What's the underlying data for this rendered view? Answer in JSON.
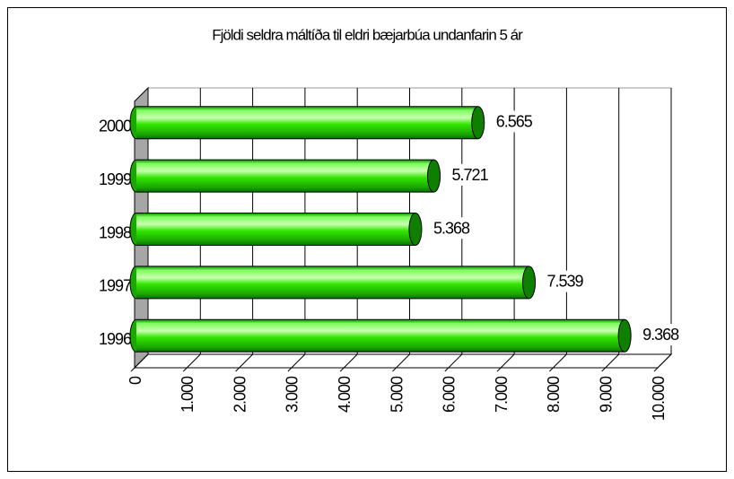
{
  "chart_data": {
    "type": "bar",
    "orientation": "horizontal",
    "title": "Fjöldi seldra máltíða til eldri bæjarbúa undanfarin 5 ár",
    "categories": [
      "1996",
      "1997",
      "1998",
      "1999",
      "2000"
    ],
    "values": [
      9368,
      7539,
      5368,
      5721,
      6565
    ],
    "value_labels": [
      "9.368",
      "7.539",
      "5.368",
      "5.721",
      "6.565"
    ],
    "color": "#33e600",
    "xlim": [
      0,
      10000
    ],
    "xticks": [
      0,
      {
        "value": 1000,
        "label": "1.000"
      },
      {
        "value": 2000,
        "label": "2.000"
      },
      {
        "value": 3000,
        "label": "3.000"
      },
      {
        "value": 4000,
        "label": "4.000"
      },
      {
        "value": 5000,
        "label": "5.000"
      },
      {
        "value": 6000,
        "label": "6.000"
      },
      {
        "value": 7000,
        "label": "7.000"
      },
      {
        "value": 8000,
        "label": "8.000"
      },
      {
        "value": 9000,
        "label": "9.000"
      },
      {
        "value": 10000,
        "label": "10.000"
      }
    ],
    "grid": true
  }
}
